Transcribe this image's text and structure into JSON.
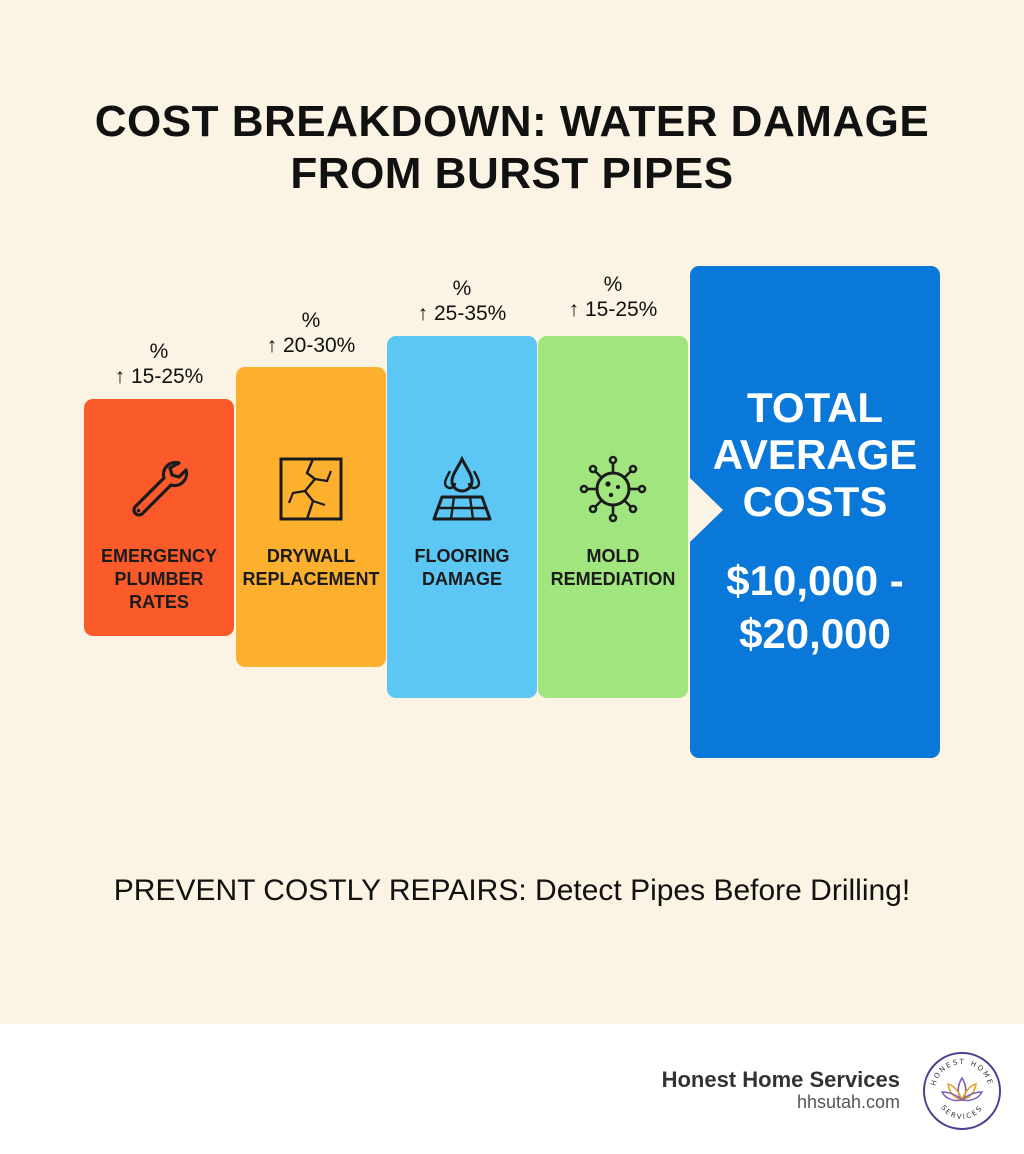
{
  "title": "COST BREAKDOWN: WATER DAMAGE FROM BURST PIPES",
  "colors": {
    "background": "#fbf3e3",
    "emergency": "#fb5b2a",
    "drywall": "#fdb02e",
    "flooring": "#5cc6f4",
    "mold": "#a1e57f",
    "total": "#0a78d9"
  },
  "categories": [
    {
      "label": "EMERGENCY\nPLUMBER\nRATES",
      "percent_symbol": "%",
      "range": "↑ 15-25%",
      "icon": "wrench-icon"
    },
    {
      "label": "DRYWALL\nREPLACEMENT",
      "percent_symbol": "%",
      "range": "↑ 20-30%",
      "icon": "cracked-wall-icon"
    },
    {
      "label": "FLOORING\nDAMAGE",
      "percent_symbol": "%",
      "range": "↑ 25-35%",
      "icon": "water-drop-floor-icon"
    },
    {
      "label": "MOLD\nREMEDIATION",
      "percent_symbol": "%",
      "range": "↑ 15-25%",
      "icon": "mold-spore-icon"
    }
  ],
  "total": {
    "heading": "TOTAL\nAVERAGE\nCOSTS",
    "value": "$10,000 -\n$20,000"
  },
  "tagline": "PREVENT COSTLY REPAIRS: Detect Pipes Before Drilling!",
  "footer": {
    "brand_name": "Honest Home Services",
    "url": "hhsutah.com",
    "logo_text_top": "HONEST HOME",
    "logo_text_bottom": "SERVICES"
  }
}
